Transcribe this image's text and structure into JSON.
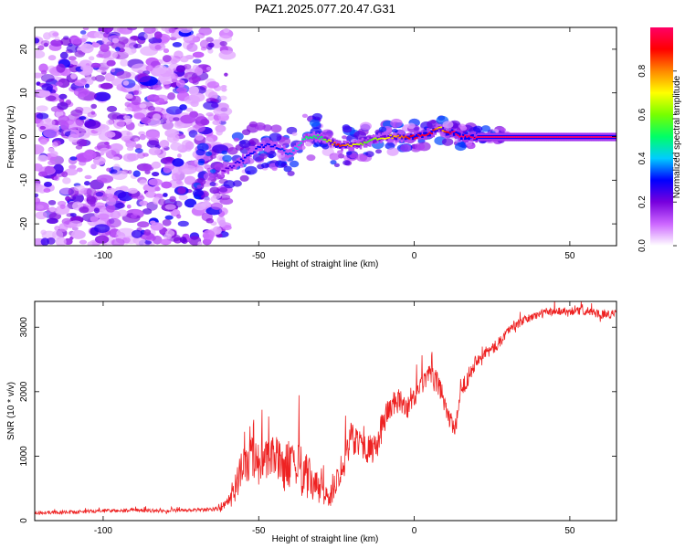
{
  "figure": {
    "title": "PAZ1.2025.077.20.47.G31"
  },
  "chart_data": [
    {
      "type": "heatmap",
      "title": "PAZ1.2025.077.20.47.G31",
      "xlabel": "Height of straight line (km)",
      "ylabel": "Frequency (Hz)",
      "xlim": [
        -122,
        65
      ],
      "ylim": [
        -25,
        25
      ],
      "xticks": [
        -100,
        -50,
        0,
        50
      ],
      "yticks": [
        -20,
        -10,
        0,
        10,
        20
      ],
      "grid": false,
      "colorbar": {
        "label": "Normalized spectral amplitude",
        "range": [
          0,
          1
        ],
        "ticks": [
          0.0,
          0.2,
          0.4,
          0.6,
          0.8
        ],
        "tick_labels": [
          "0.0",
          "0.2",
          "0.4",
          "0.6",
          "0.8"
        ],
        "colormap": [
          "#ffffff",
          "#cc66ff",
          "#7700dd",
          "#0000ff",
          "#00ccff",
          "#00ff66",
          "#77ff00",
          "#ffff00",
          "#ff8800",
          "#ff0000",
          "#ff0066"
        ]
      },
      "ridge": {
        "x": [
          -62,
          -55,
          -50,
          -45,
          -40,
          -35,
          -30,
          -25,
          -20,
          -15,
          -10,
          -5,
          0,
          5,
          8,
          10,
          12,
          15,
          20,
          30,
          40,
          50,
          65
        ],
        "y": [
          -8,
          -5,
          -2,
          -2,
          -4,
          0,
          0,
          -2,
          -2,
          -1,
          0,
          0,
          0,
          1,
          2,
          1,
          1,
          0,
          0,
          0,
          0,
          0,
          0
        ],
        "amplitude": [
          0.2,
          0.3,
          0.3,
          0.3,
          0.35,
          0.5,
          0.5,
          0.9,
          0.7,
          0.55,
          0.7,
          0.8,
          0.95,
          0.95,
          0.7,
          0.9,
          1.0,
          1.0,
          1.0,
          1.0,
          1.0,
          1.0,
          1.0
        ]
      },
      "noise_region": {
        "x": [
          -122,
          -60
        ],
        "y": [
          -25,
          25
        ],
        "amplitude": [
          0.05,
          0.3
        ]
      }
    },
    {
      "type": "line",
      "xlabel": "Height of straight line (km)",
      "ylabel": "SNR (10 * v/v)",
      "xlim": [
        -122,
        65
      ],
      "ylim": [
        0,
        3400
      ],
      "xticks": [
        -100,
        -50,
        0,
        50
      ],
      "yticks": [
        0,
        1000,
        2000,
        3000
      ],
      "grid": false,
      "color": "#ee2222",
      "series": [
        {
          "x": [
            -122,
            -110,
            -100,
            -90,
            -80,
            -70,
            -65,
            -60,
            -58,
            -55,
            -52,
            -50,
            -47,
            -45,
            -42,
            -40,
            -37,
            -35,
            -32,
            -30,
            -27,
            -25,
            -22,
            -20,
            -18,
            -15,
            -12,
            -10,
            -8,
            -5,
            -2,
            0,
            3,
            5,
            8,
            10,
            12,
            13,
            15,
            18,
            20,
            22,
            25,
            28,
            30,
            35,
            40,
            45,
            50,
            55,
            60,
            65
          ],
          "y": [
            120,
            130,
            150,
            160,
            150,
            160,
            170,
            250,
            500,
            800,
            1000,
            900,
            900,
            1000,
            800,
            900,
            800,
            700,
            550,
            450,
            350,
            650,
            1000,
            1300,
            1250,
            1100,
            1100,
            1550,
            1750,
            1850,
            1750,
            1900,
            2150,
            2250,
            2100,
            1800,
            1500,
            1350,
            2000,
            2300,
            2500,
            2600,
            2650,
            2800,
            2950,
            3100,
            3200,
            3250,
            3250,
            3250,
            3200,
            3200
          ],
          "jitter": [
            50,
            50,
            50,
            50,
            50,
            50,
            60,
            150,
            450,
            600,
            650,
            650,
            600,
            650,
            650,
            700,
            700,
            700,
            500,
            400,
            300,
            400,
            500,
            500,
            450,
            400,
            400,
            450,
            400,
            350,
            300,
            300,
            300,
            300,
            350,
            350,
            300,
            250,
            250,
            250,
            200,
            200,
            180,
            150,
            130,
            120,
            120,
            120,
            120,
            120,
            120,
            120
          ]
        }
      ]
    }
  ]
}
